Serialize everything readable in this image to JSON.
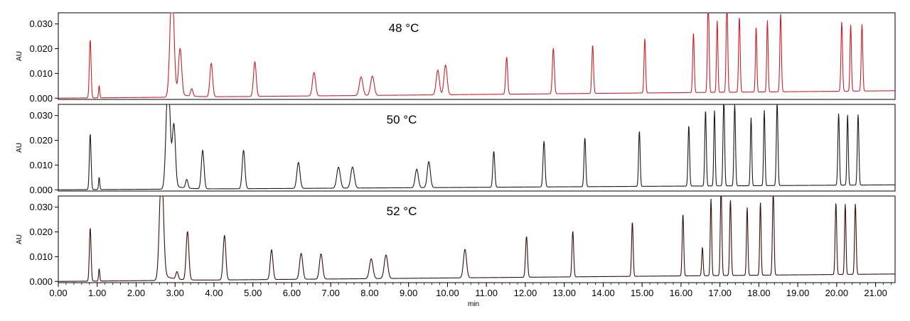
{
  "chart_data": [
    {
      "type": "line",
      "title": "48 °C",
      "ylabel": "AU",
      "xlabel": "",
      "color": "#cc2027",
      "xlim": [
        0.0,
        21.5
      ],
      "ylim": [
        -0.0005,
        0.0345
      ],
      "yticks": [
        "0.000",
        "0.010",
        "0.020",
        "0.030"
      ],
      "baseline": {
        "start": 0.0,
        "end": 0.003
      },
      "peaks": [
        {
          "t": 0.82,
          "h": 0.0235,
          "w": 0.022
        },
        {
          "t": 1.05,
          "h": 0.005,
          "w": 0.015
        },
        {
          "t": 2.92,
          "h": 0.045,
          "w": 0.05
        },
        {
          "t": 3.13,
          "h": 0.0185,
          "w": 0.04
        },
        {
          "t": 3.43,
          "h": 0.003,
          "w": 0.03
        },
        {
          "t": 3.93,
          "h": 0.0135,
          "w": 0.035
        },
        {
          "t": 5.05,
          "h": 0.014,
          "w": 0.035
        },
        {
          "t": 6.57,
          "h": 0.0095,
          "w": 0.04
        },
        {
          "t": 7.78,
          "h": 0.0075,
          "w": 0.045
        },
        {
          "t": 8.07,
          "h": 0.0078,
          "w": 0.045
        },
        {
          "t": 9.75,
          "h": 0.01,
          "w": 0.04
        },
        {
          "t": 9.95,
          "h": 0.012,
          "w": 0.04
        },
        {
          "t": 11.52,
          "h": 0.015,
          "w": 0.025
        },
        {
          "t": 12.72,
          "h": 0.0185,
          "w": 0.025
        },
        {
          "t": 13.73,
          "h": 0.0195,
          "w": 0.022
        },
        {
          "t": 15.07,
          "h": 0.022,
          "w": 0.02
        },
        {
          "t": 16.32,
          "h": 0.024,
          "w": 0.02
        },
        {
          "t": 16.7,
          "h": 0.04,
          "w": 0.02
        },
        {
          "t": 16.93,
          "h": 0.029,
          "w": 0.018
        },
        {
          "t": 17.18,
          "h": 0.04,
          "w": 0.02
        },
        {
          "t": 17.5,
          "h": 0.0305,
          "w": 0.02
        },
        {
          "t": 17.93,
          "h": 0.0265,
          "w": 0.018
        },
        {
          "t": 18.22,
          "h": 0.029,
          "w": 0.018
        },
        {
          "t": 18.56,
          "h": 0.0315,
          "w": 0.02
        },
        {
          "t": 20.13,
          "h": 0.028,
          "w": 0.02
        },
        {
          "t": 20.36,
          "h": 0.027,
          "w": 0.018
        },
        {
          "t": 20.65,
          "h": 0.027,
          "w": 0.02
        }
      ]
    },
    {
      "type": "line",
      "title": "50 °C",
      "ylabel": "AU",
      "xlabel": "",
      "color": "#1a1a1a",
      "xlim": [
        0.0,
        21.5
      ],
      "ylim": [
        -0.0005,
        0.0345
      ],
      "yticks": [
        "0.000",
        "0.010",
        "0.020",
        "0.030"
      ],
      "baseline": {
        "start": 0.0,
        "end": 0.002
      },
      "peaks": [
        {
          "t": 0.82,
          "h": 0.0225,
          "w": 0.022
        },
        {
          "t": 1.05,
          "h": 0.005,
          "w": 0.015
        },
        {
          "t": 2.82,
          "h": 0.045,
          "w": 0.05
        },
        {
          "t": 2.97,
          "h": 0.0245,
          "w": 0.04
        },
        {
          "t": 3.3,
          "h": 0.0035,
          "w": 0.03
        },
        {
          "t": 3.71,
          "h": 0.0155,
          "w": 0.035
        },
        {
          "t": 4.76,
          "h": 0.0155,
          "w": 0.035
        },
        {
          "t": 6.17,
          "h": 0.0105,
          "w": 0.04
        },
        {
          "t": 7.2,
          "h": 0.0085,
          "w": 0.045
        },
        {
          "t": 7.56,
          "h": 0.0085,
          "w": 0.045
        },
        {
          "t": 9.21,
          "h": 0.0075,
          "w": 0.04
        },
        {
          "t": 9.52,
          "h": 0.0105,
          "w": 0.04
        },
        {
          "t": 11.19,
          "h": 0.0145,
          "w": 0.025
        },
        {
          "t": 12.48,
          "h": 0.0185,
          "w": 0.025
        },
        {
          "t": 13.53,
          "h": 0.0198,
          "w": 0.022
        },
        {
          "t": 14.93,
          "h": 0.0225,
          "w": 0.02
        },
        {
          "t": 16.2,
          "h": 0.0245,
          "w": 0.02
        },
        {
          "t": 16.63,
          "h": 0.0305,
          "w": 0.02
        },
        {
          "t": 16.86,
          "h": 0.0305,
          "w": 0.018
        },
        {
          "t": 17.1,
          "h": 0.036,
          "w": 0.02
        },
        {
          "t": 17.38,
          "h": 0.033,
          "w": 0.02
        },
        {
          "t": 17.8,
          "h": 0.0275,
          "w": 0.018
        },
        {
          "t": 18.14,
          "h": 0.0305,
          "w": 0.018
        },
        {
          "t": 18.47,
          "h": 0.034,
          "w": 0.02
        },
        {
          "t": 20.05,
          "h": 0.029,
          "w": 0.02
        },
        {
          "t": 20.28,
          "h": 0.0285,
          "w": 0.018
        },
        {
          "t": 20.55,
          "h": 0.0285,
          "w": 0.02
        }
      ]
    },
    {
      "type": "line",
      "title": "52 °C",
      "ylabel": "AU",
      "xlabel": "min",
      "color": "#3a0c0c",
      "xlim": [
        0.0,
        21.5
      ],
      "ylim": [
        -0.0005,
        0.0345
      ],
      "yticks": [
        "0.000",
        "0.010",
        "0.020",
        "0.030"
      ],
      "xticks": [
        "0.00",
        "1.00",
        "2.00",
        "3.00",
        "4.00",
        "5.00",
        "6.00",
        "7.00",
        "8.00",
        "9.00",
        "10.00",
        "11.00",
        "12.00",
        "13.00",
        "14.00",
        "15.00",
        "16.00",
        "17.00",
        "18.00",
        "19.00",
        "20.00",
        "21.00"
      ],
      "baseline": {
        "start": 0.0,
        "end": 0.003
      },
      "peaks": [
        {
          "t": 0.82,
          "h": 0.0215,
          "w": 0.022
        },
        {
          "t": 1.05,
          "h": 0.005,
          "w": 0.015
        },
        {
          "t": 2.65,
          "h": 0.045,
          "w": 0.05
        },
        {
          "t": 3.05,
          "h": 0.003,
          "w": 0.03
        },
        {
          "t": 3.32,
          "h": 0.0195,
          "w": 0.035
        },
        {
          "t": 4.27,
          "h": 0.018,
          "w": 0.035
        },
        {
          "t": 5.48,
          "h": 0.012,
          "w": 0.035
        },
        {
          "t": 6.24,
          "h": 0.0105,
          "w": 0.04
        },
        {
          "t": 6.75,
          "h": 0.0102,
          "w": 0.04
        },
        {
          "t": 8.04,
          "h": 0.008,
          "w": 0.045
        },
        {
          "t": 8.42,
          "h": 0.0095,
          "w": 0.045
        },
        {
          "t": 10.45,
          "h": 0.0115,
          "w": 0.04
        },
        {
          "t": 12.03,
          "h": 0.0165,
          "w": 0.025
        },
        {
          "t": 13.22,
          "h": 0.0185,
          "w": 0.022
        },
        {
          "t": 14.75,
          "h": 0.022,
          "w": 0.02
        },
        {
          "t": 16.05,
          "h": 0.025,
          "w": 0.02
        },
        {
          "t": 16.55,
          "h": 0.0115,
          "w": 0.018
        },
        {
          "t": 16.77,
          "h": 0.031,
          "w": 0.018
        },
        {
          "t": 17.03,
          "h": 0.036,
          "w": 0.02
        },
        {
          "t": 17.27,
          "h": 0.0305,
          "w": 0.02
        },
        {
          "t": 17.7,
          "h": 0.0275,
          "w": 0.018
        },
        {
          "t": 18.04,
          "h": 0.0295,
          "w": 0.018
        },
        {
          "t": 18.37,
          "h": 0.036,
          "w": 0.02
        },
        {
          "t": 19.98,
          "h": 0.029,
          "w": 0.02
        },
        {
          "t": 20.22,
          "h": 0.0285,
          "w": 0.018
        },
        {
          "t": 20.48,
          "h": 0.0285,
          "w": 0.02
        }
      ]
    }
  ]
}
